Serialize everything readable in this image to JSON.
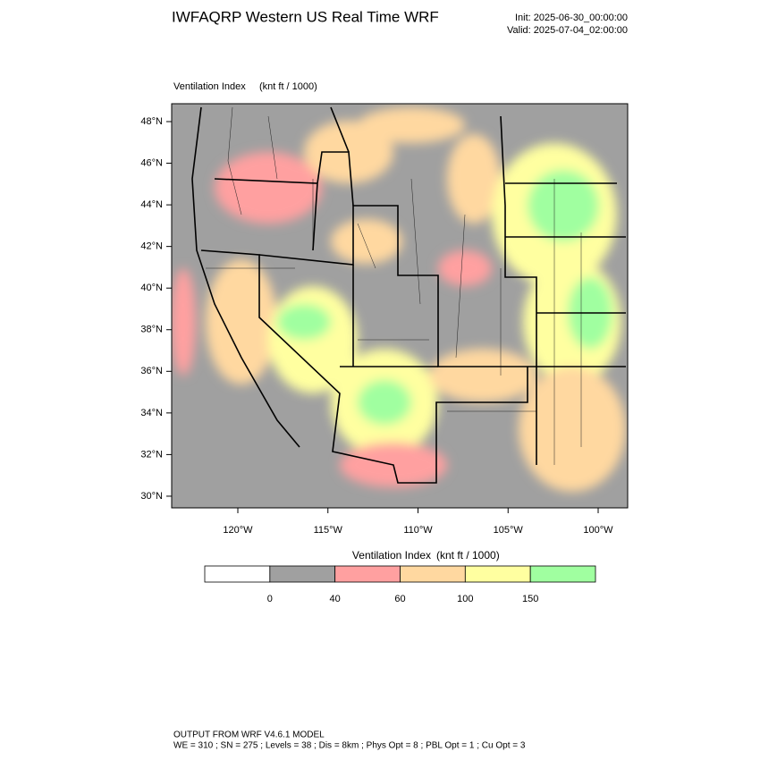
{
  "header": {
    "title": "IWFAQRP Western US Real Time WRF",
    "init": "Init: 2025-06-30_00:00:00",
    "valid": "Valid: 2025-07-04_02:00:00"
  },
  "map": {
    "field": "Ventilation Index",
    "units": "(knt ft / 1000)",
    "lat_labels": [
      "48°N",
      "46°N",
      "44°N",
      "42°N",
      "40°N",
      "38°N",
      "36°N",
      "34°N",
      "32°N",
      "30°N"
    ],
    "lon_labels": [
      "120°W",
      "115°W",
      "110°W",
      "105°W",
      "100°W"
    ]
  },
  "colorbar": {
    "field": "Ventilation Index",
    "units": "(knt ft / 1000)",
    "colors": [
      "#ffffff",
      "#a0a0a0",
      "#ffa0a0",
      "#ffd8a0",
      "#ffffa0",
      "#a0ffa0"
    ],
    "labels": [
      "0",
      "40",
      "60",
      "100",
      "150"
    ]
  },
  "footer": {
    "line1": "OUTPUT FROM WRF V4.6.1 MODEL",
    "line2": "WE = 310 ; SN = 275 ; Levels = 38 ; Dis = 8km ; Phys Opt = 8 ; PBL Opt = 1 ; Cu Opt = 3"
  }
}
